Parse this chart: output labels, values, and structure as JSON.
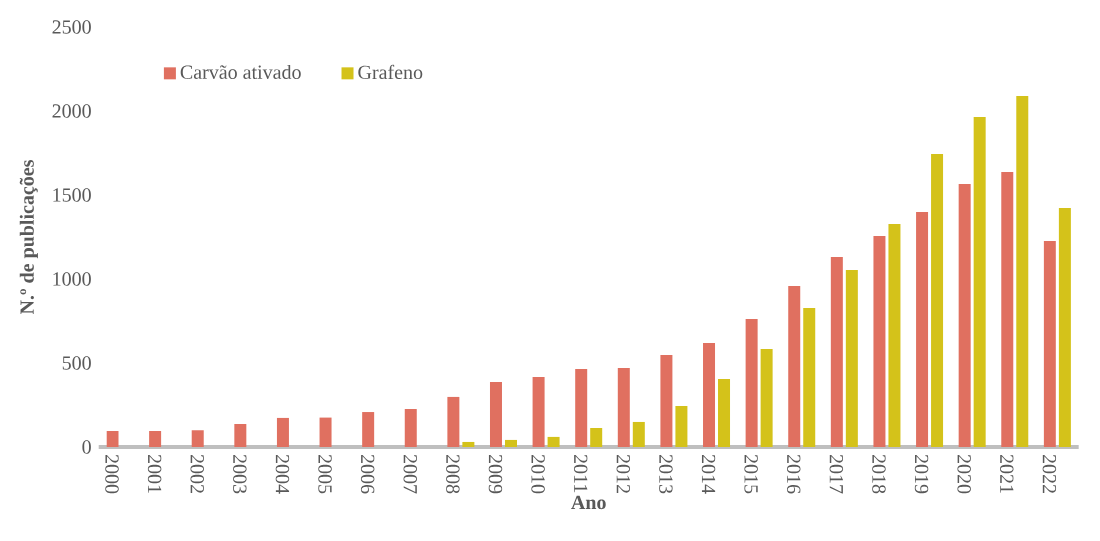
{
  "chart_data": {
    "type": "bar",
    "xlabel": "Ano",
    "ylabel": "N.º de publicações",
    "categories": [
      "2000",
      "2001",
      "2002",
      "2003",
      "2004",
      "2005",
      "2006",
      "2007",
      "2008",
      "2009",
      "2010",
      "2011",
      "2012",
      "2013",
      "2014",
      "2015",
      "2016",
      "2017",
      "2018",
      "2019",
      "2020",
      "2021",
      "2022"
    ],
    "series": [
      {
        "name": "Carvão ativado",
        "color": "#e07060",
        "values": [
          95,
          95,
          100,
          137,
          173,
          175,
          208,
          226,
          298,
          387,
          417,
          464,
          470,
          548,
          619,
          762,
          958,
          1131,
          1256,
          1399,
          1565,
          1637,
          1226
        ]
      },
      {
        "name": "Grafeno",
        "color": "#d4c21a",
        "values": [
          0,
          0,
          0,
          0,
          0,
          0,
          0,
          0,
          30,
          42,
          60,
          113,
          149,
          244,
          405,
          583,
          827,
          1054,
          1327,
          1744,
          1964,
          2089,
          1423
        ]
      }
    ],
    "ylim": [
      0,
      2500
    ],
    "yticks": [
      0,
      500,
      1000,
      1500,
      2000,
      2500
    ],
    "legend": "top left",
    "grid": false
  }
}
